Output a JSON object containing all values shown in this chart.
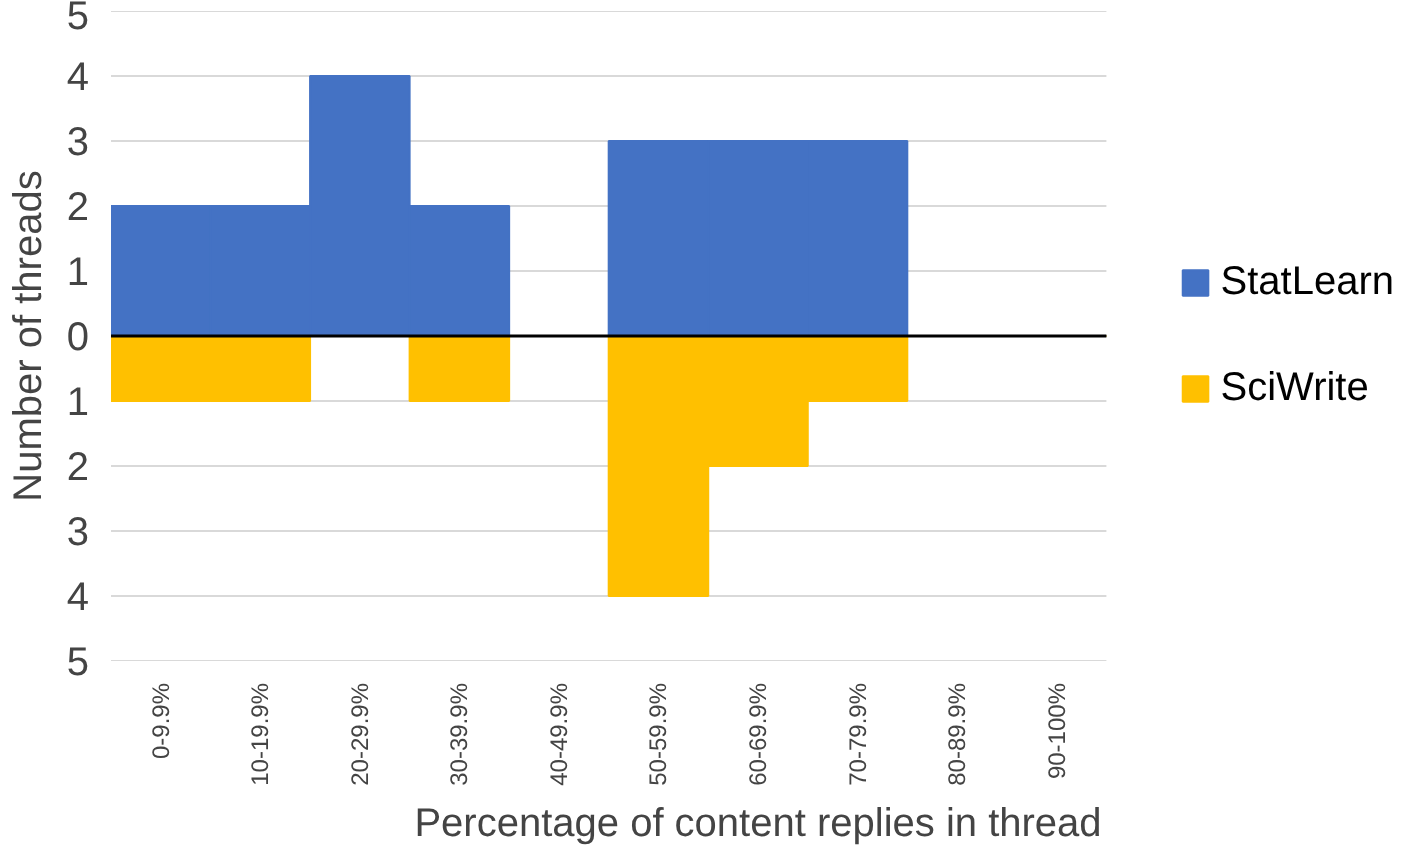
{
  "chart_data": {
    "type": "bar",
    "stacked": true,
    "xlabel": "Percentage of content replies in thread",
    "ylabel": "Number of threads",
    "categories": [
      "0-9.9%",
      "10-19.9%",
      "20-29.9%",
      "30-39.9%",
      "40-49.9%",
      "50-59.9%",
      "60-69.9%",
      "70-79.9%",
      "80-89.9%",
      "90-100%"
    ],
    "series": [
      {
        "name": "StatLearn",
        "color": "#4472c4",
        "values": [
          2,
          2,
          4,
          2,
          0,
          3,
          3,
          3,
          0,
          0
        ]
      },
      {
        "name": "SciWrite",
        "color": "#ffc000",
        "values": [
          -1,
          -1,
          0,
          -1,
          0,
          -4,
          -2,
          -1,
          0,
          0
        ]
      }
    ],
    "ylim": [
      -5,
      5
    ],
    "yticks": [
      {
        "value": -5,
        "label": "5"
      },
      {
        "value": -4,
        "label": "4"
      },
      {
        "value": -3,
        "label": "3"
      },
      {
        "value": -2,
        "label": "2"
      },
      {
        "value": -1,
        "label": "1"
      },
      0,
      1,
      2,
      3,
      4,
      5
    ],
    "ref_lines": [
      {
        "axis": "y",
        "value": 0,
        "color": "#000000"
      }
    ],
    "grid": "y",
    "legend": "right"
  }
}
